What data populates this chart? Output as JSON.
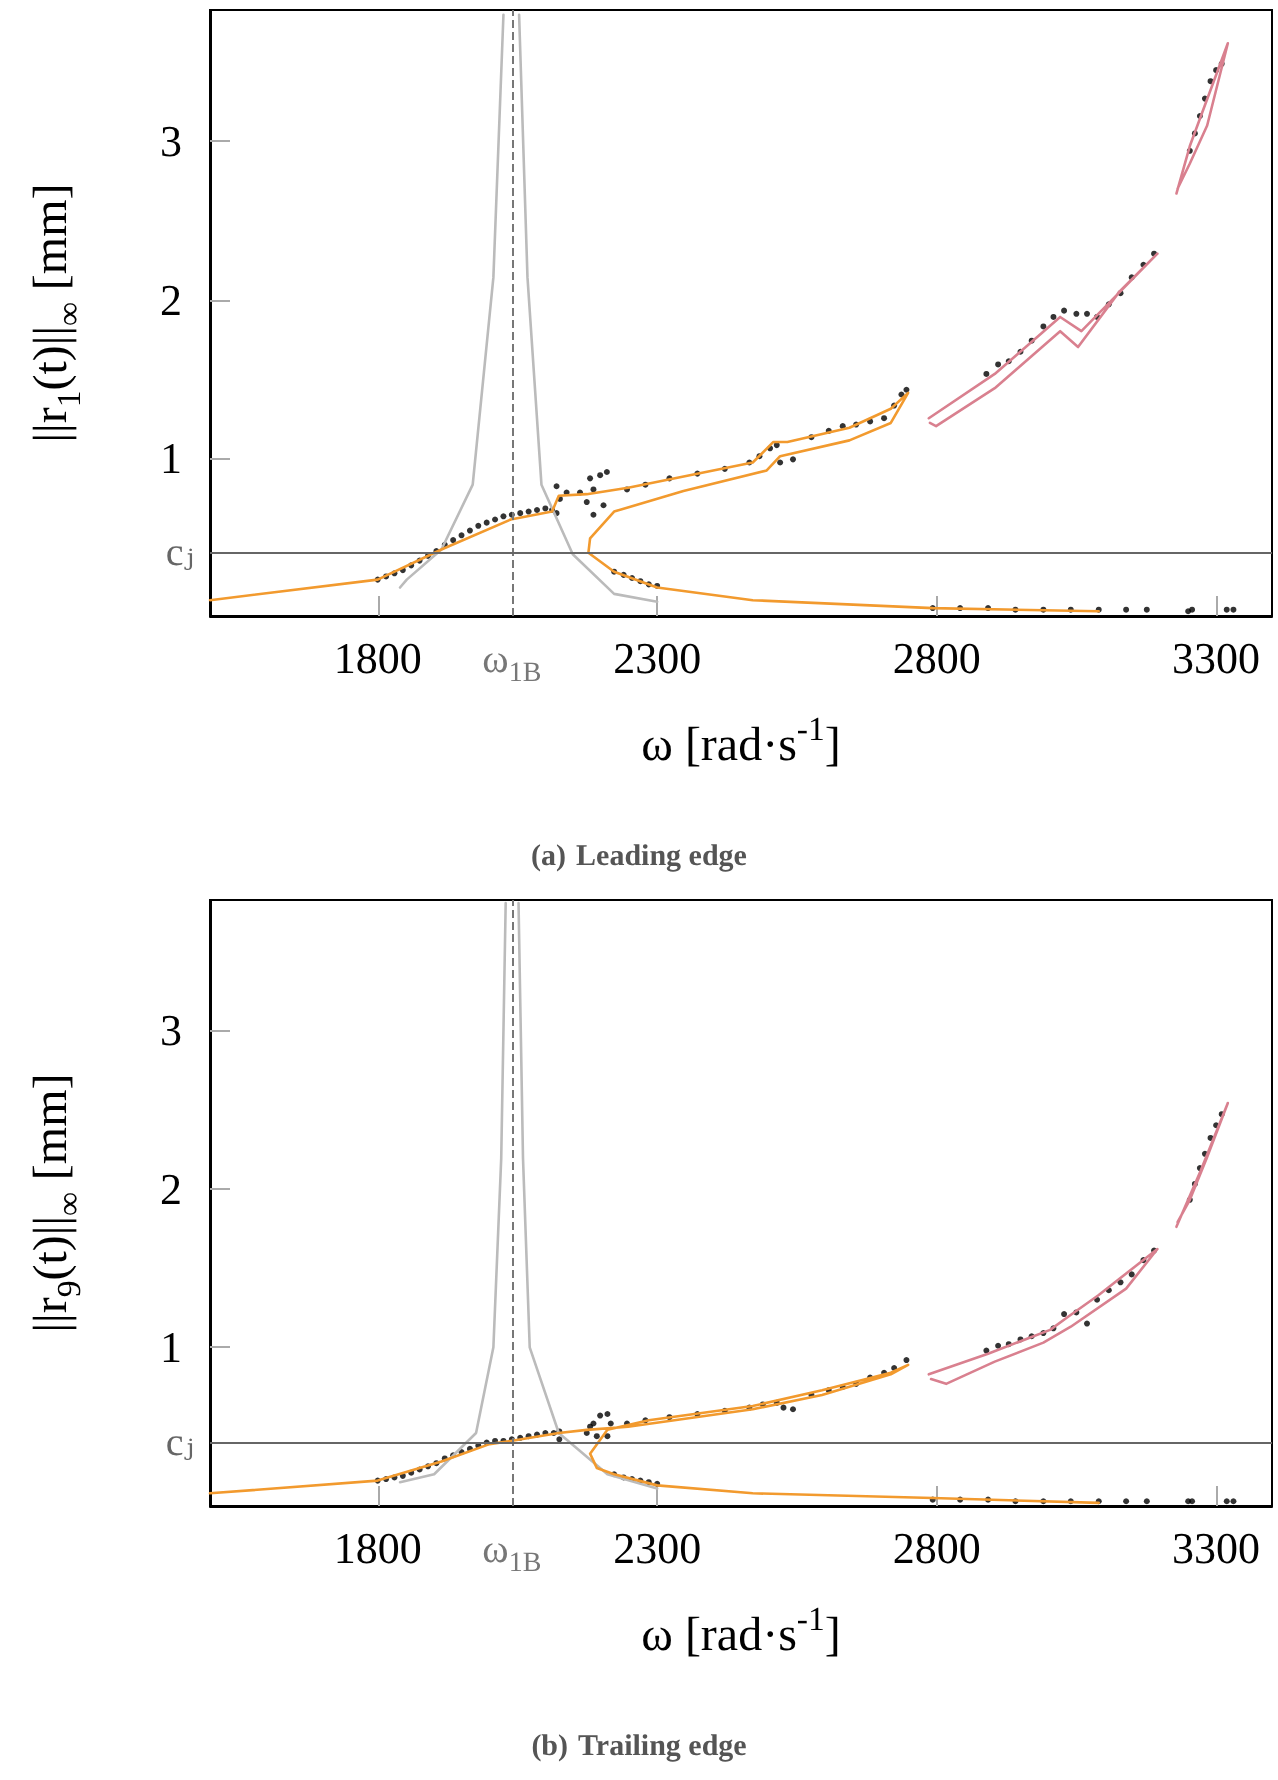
{
  "chart_data": [
    {
      "type": "line",
      "title": "(a) Leading edge",
      "xlabel": "ω [rad·s$^{-1}$]",
      "ylabel": "||r$_{1}$(t)||$_{∞}$ [mm]",
      "xlim": [
        1500,
        3400
      ],
      "ylim": [
        0,
        3.83
      ],
      "xticks": [
        1800,
        2300,
        2800,
        3300
      ],
      "yticks": [
        1,
        2,
        3
      ],
      "grid": false,
      "ref_lines": [
        {
          "axis": "x",
          "value": 2040,
          "label": "ω$_{1B}$",
          "color": "#777777",
          "line_style": "dashed"
        },
        {
          "axis": "y",
          "value": 0.4,
          "label": "cⱼ",
          "color": "#666666",
          "line_style": "solid"
        }
      ],
      "series": [
        {
          "type": "line",
          "color": "#bbbbbb",
          "marker": "none",
          "x": [
            1840,
            1852,
            1914,
            1970,
            2007,
            2025,
            2040,
            2053,
            2068,
            2093,
            2149,
            2223,
            2300
          ],
          "values": [
            0.18,
            0.23,
            0.42,
            0.83,
            2.14,
            3.8,
            null,
            3.8,
            2.14,
            0.83,
            0.39,
            0.14,
            0.09
          ]
        },
        {
          "type": "line",
          "color": "#f29a2e",
          "marker": "none",
          "x": [
            1500,
            1800,
            1914,
            2038,
            2112,
            2124,
            2174,
            2248,
            2471,
            2508,
            2533,
            2644,
            2718,
            2749,
            2718,
            2644,
            2520,
            2496,
            2347,
            2223,
            2180,
            2177,
            2223,
            2300,
            2471,
            2793,
            3090
          ],
          "values": [
            0.1,
            0.23,
            0.42,
            0.61,
            0.66,
            0.76,
            0.77,
            0.81,
            0.97,
            1.1,
            1.1,
            1.19,
            1.31,
            1.41,
            1.22,
            1.11,
            1.01,
            0.92,
            0.79,
            0.66,
            0.49,
            0.4,
            0.28,
            0.18,
            0.1,
            0.05,
            0.03
          ]
        },
        {
          "type": "line",
          "color": "#d9808f",
          "marker": "none",
          "x": [
            2786,
            2904,
            3021,
            3059,
            3195,
            3127,
            3053,
            3021,
            2904,
            2799,
            2788
          ],
          "values": [
            1.25,
            1.53,
            1.89,
            1.8,
            2.29,
            2.05,
            1.7,
            1.8,
            1.44,
            1.2,
            1.22
          ]
        },
        {
          "type": "line",
          "color": "#d9808f",
          "marker": "none",
          "x": [
            3229,
            3253,
            3321,
            3284,
            3253,
            3231
          ],
          "values": [
            2.67,
            2.97,
            3.62,
            3.1,
            2.86,
            2.7
          ]
        },
        {
          "type": "scatter",
          "color": "#000000",
          "marker": "circle",
          "x": [
            1800,
            1815,
            1830,
            1845,
            1860,
            1875,
            1890,
            1905,
            1920,
            1935,
            1950,
            1965,
            1980,
            1995,
            2010,
            2025,
            2040,
            2055,
            2070,
            2085,
            2100,
            2112,
            2120,
            2120,
            2138,
            2162,
            2186,
            2198,
            2210,
            2174,
            2186,
            2204,
            2180,
            2126,
            2246,
            2279,
            2322,
            2372,
            2421,
            2465,
            2483,
            2502,
            2514,
            2520,
            2543,
            2576,
            2607,
            2632,
            2656,
            2681,
            2706,
            2724,
            2737,
            2746,
            2223,
            2240,
            2255,
            2270,
            2285,
            2300,
            2889,
            2910,
            2929,
            2950,
            2970,
            2991,
            3009,
            3028,
            3050,
            3069,
            3087,
            3108,
            3129,
            3149,
            3170,
            3189,
            3253,
            3262,
            3271,
            3280,
            3290,
            3300,
            3310,
            2793,
            2842,
            2892,
            2941,
            2991,
            3040,
            3090,
            3139,
            3176,
            3250,
            3257,
            3319,
            3331
          ],
          "values": [
            0.23,
            0.25,
            0.27,
            0.29,
            0.32,
            0.35,
            0.38,
            0.41,
            0.45,
            0.48,
            0.51,
            0.54,
            0.57,
            0.59,
            0.61,
            0.63,
            0.64,
            0.65,
            0.66,
            0.67,
            0.68,
            0.67,
            0.82,
            0.65,
            0.78,
            0.78,
            0.8,
            0.89,
            0.91,
            0.72,
            0.64,
            0.7,
            0.87,
            0.74,
            0.8,
            0.83,
            0.87,
            0.9,
            0.93,
            0.97,
            1.01,
            1.06,
            1.08,
            0.97,
            0.99,
            1.13,
            1.17,
            1.2,
            1.21,
            1.23,
            1.25,
            1.33,
            1.4,
            1.43,
            0.28,
            0.26,
            0.24,
            0.22,
            0.2,
            0.19,
            1.53,
            1.59,
            1.61,
            1.67,
            1.74,
            1.83,
            1.89,
            1.93,
            1.91,
            1.91,
            1.89,
            1.97,
            2.04,
            2.14,
            2.22,
            2.29,
            2.94,
            3.05,
            3.16,
            3.27,
            3.38,
            3.45,
            3.49,
            0.05,
            0.05,
            0.05,
            0.04,
            0.04,
            0.04,
            0.04,
            0.04,
            0.04,
            0.03,
            0.04,
            0.04,
            0.04
          ]
        }
      ]
    },
    {
      "type": "line",
      "title": "(b) Trailing edge",
      "xlabel": "ω [rad·s$^{-1}$]",
      "ylabel": "||r$_{9}$(t)||$_{∞}$ [mm]",
      "xlim": [
        1500,
        3400
      ],
      "ylim": [
        0,
        3.82
      ],
      "xticks": [
        1800,
        2300,
        2800,
        3300
      ],
      "yticks": [
        1,
        2,
        3
      ],
      "grid": false,
      "ref_lines": [
        {
          "axis": "x",
          "value": 2040,
          "label": "ω$_{1B}$",
          "color": "#777777",
          "line_style": "dashed"
        },
        {
          "axis": "y",
          "value": 0.4,
          "label": "cⱼ",
          "color": "#666666",
          "line_style": "solid"
        }
      ],
      "series": [
        {
          "type": "line",
          "color": "#bbbbbb",
          "marker": "none",
          "x": [
            1840,
            1901,
            1976,
            2007,
            2021,
            2029,
            2040,
            2052,
            2060,
            2072,
            2124,
            2211,
            2300
          ],
          "values": [
            0.15,
            0.2,
            0.46,
            1.0,
            2.19,
            3.8,
            null,
            3.8,
            2.19,
            1.0,
            0.46,
            0.2,
            0.11
          ]
        },
        {
          "type": "line",
          "color": "#f29a2e",
          "marker": "none",
          "x": [
            1500,
            1800,
            1914,
            2000,
            2038,
            2124,
            2174,
            2248,
            2471,
            2595,
            2718,
            2749,
            2718,
            2595,
            2471,
            2285,
            2211,
            2180,
            2192,
            2223,
            2300,
            2471,
            2793,
            3090
          ],
          "values": [
            0.08,
            0.16,
            0.28,
            0.39,
            0.41,
            0.46,
            0.48,
            0.5,
            0.61,
            0.7,
            0.83,
            0.89,
            0.84,
            0.73,
            0.63,
            0.54,
            0.48,
            0.33,
            0.24,
            0.2,
            0.13,
            0.08,
            0.05,
            0.02
          ]
        },
        {
          "type": "line",
          "color": "#d9808f",
          "marker": "none",
          "x": [
            2786,
            2892,
            3003,
            3034,
            3090,
            3195,
            3139,
            3040,
            2991,
            2904,
            2817,
            2790
          ],
          "values": [
            0.83,
            0.96,
            1.11,
            1.19,
            1.33,
            1.62,
            1.37,
            1.13,
            1.03,
            0.91,
            0.77,
            0.8
          ]
        },
        {
          "type": "line",
          "color": "#d9808f",
          "marker": "none",
          "x": [
            3229,
            3272,
            3321,
            3284,
            3253,
            3231
          ],
          "values": [
            1.76,
            2.11,
            2.54,
            2.2,
            1.93,
            1.79
          ]
        },
        {
          "type": "scatter",
          "color": "#000000",
          "marker": "circle",
          "x": [
            1800,
            1815,
            1830,
            1845,
            1860,
            1875,
            1890,
            1905,
            1920,
            1935,
            1950,
            1965,
            1980,
            1995,
            2010,
            2025,
            2040,
            2055,
            2070,
            2085,
            2100,
            2115,
            2125,
            2125,
            2174,
            2186,
            2198,
            2211,
            2217,
            2192,
            2211,
            2180,
            2246,
            2279,
            2322,
            2372,
            2421,
            2465,
            2489,
            2514,
            2526,
            2543,
            2576,
            2607,
            2632,
            2656,
            2681,
            2706,
            2724,
            2746,
            2223,
            2240,
            2255,
            2270,
            2285,
            2300,
            2889,
            2910,
            2929,
            2950,
            2970,
            2991,
            3009,
            3028,
            3050,
            3069,
            3087,
            3108,
            3129,
            3149,
            3170,
            3189,
            3253,
            3262,
            3271,
            3280,
            3290,
            3300,
            3310,
            2793,
            2842,
            2892,
            2941,
            2991,
            3040,
            3090,
            3139,
            3176,
            3250,
            3257,
            3319,
            3331
          ],
          "values": [
            0.16,
            0.17,
            0.18,
            0.19,
            0.21,
            0.23,
            0.25,
            0.27,
            0.3,
            0.32,
            0.34,
            0.36,
            0.38,
            0.4,
            0.41,
            0.41,
            0.42,
            0.43,
            0.44,
            0.45,
            0.46,
            0.46,
            0.47,
            0.42,
            0.46,
            0.52,
            0.57,
            0.58,
            0.52,
            0.44,
            0.44,
            0.5,
            0.52,
            0.54,
            0.56,
            0.58,
            0.6,
            0.62,
            0.64,
            0.65,
            0.62,
            0.61,
            0.7,
            0.73,
            0.75,
            0.77,
            0.81,
            0.84,
            0.87,
            0.92,
            0.2,
            0.18,
            0.17,
            0.16,
            0.15,
            0.14,
            0.98,
            1.01,
            1.02,
            1.05,
            1.07,
            1.09,
            1.12,
            1.21,
            1.22,
            1.15,
            1.3,
            1.36,
            1.41,
            1.46,
            1.55,
            1.61,
            1.93,
            2.03,
            2.13,
            2.22,
            2.32,
            2.4,
            2.47,
            0.04,
            0.04,
            0.04,
            0.03,
            0.03,
            0.03,
            0.03,
            0.03,
            0.03,
            0.03,
            0.03,
            0.03,
            0.03
          ]
        }
      ]
    }
  ]
}
